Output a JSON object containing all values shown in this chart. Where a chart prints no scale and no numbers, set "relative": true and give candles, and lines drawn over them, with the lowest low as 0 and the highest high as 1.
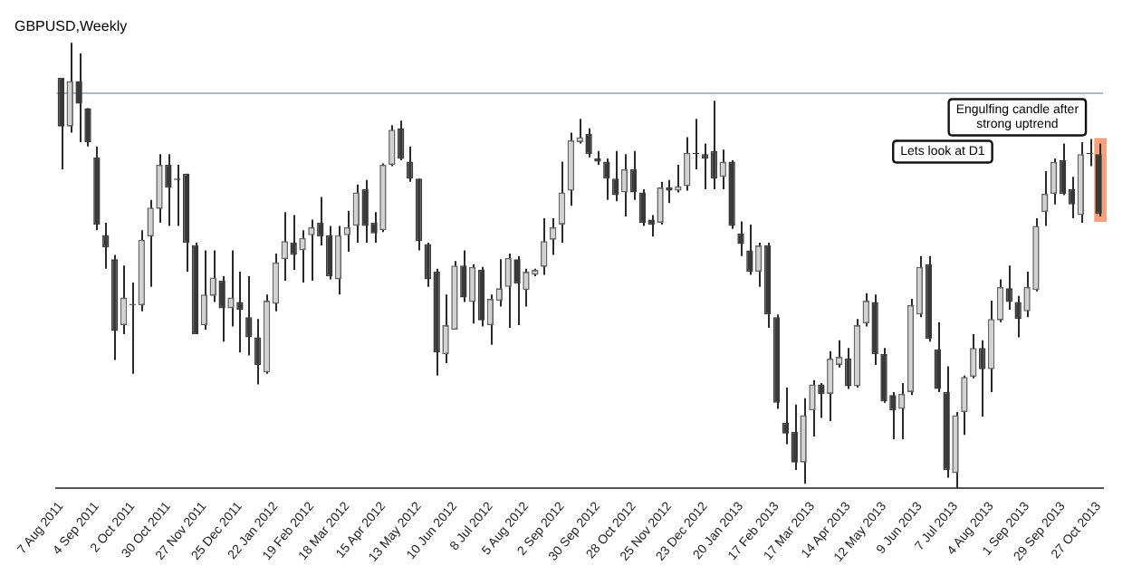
{
  "chart_data": {
    "type": "candlestick",
    "title": "GBPUSD,Weekly",
    "relative": true,
    "grid": false,
    "legend": false,
    "categories": [
      "7 Aug 2011",
      null,
      null,
      null,
      "4 Sep 2011",
      null,
      null,
      null,
      "2 Oct 2011",
      null,
      null,
      null,
      "30 Oct 2011",
      null,
      null,
      null,
      "27 Nov 2011",
      null,
      null,
      null,
      "25 Dec 2011",
      null,
      null,
      null,
      "22 Jan 2012",
      null,
      null,
      null,
      "19 Feb 2012",
      null,
      null,
      null,
      "18 Mar 2012",
      null,
      null,
      null,
      "15 Apr 2012",
      null,
      null,
      null,
      "13 May 2012",
      null,
      null,
      null,
      "10 Jun 2012",
      null,
      null,
      null,
      "8 Jul 2012",
      null,
      null,
      null,
      "5 Aug 2012",
      null,
      null,
      null,
      "2 Sep 2012",
      null,
      null,
      null,
      "30 Sep 2012",
      null,
      null,
      null,
      "28 Oct 2012",
      null,
      null,
      null,
      "25 Nov 2012",
      null,
      null,
      null,
      "23 Dec 2012",
      null,
      null,
      null,
      "20 Jan 2013",
      null,
      null,
      null,
      "17 Feb 2013",
      null,
      null,
      null,
      "17 Mar 2013",
      null,
      null,
      null,
      "14 Apr 2013",
      null,
      null,
      null,
      "12 May 2013",
      null,
      null,
      null,
      "9 Jun 2013",
      null,
      null,
      null,
      "7 Jul 2013",
      null,
      null,
      null,
      "4 Aug 2013",
      null,
      null,
      null,
      "1 Sep 2013",
      null,
      null,
      null,
      "29 Sep 2013",
      null,
      null,
      null,
      "27 Oct 2013"
    ],
    "ohlc": [
      [
        0.921,
        0.921,
        0.716,
        0.812
      ],
      [
        0.812,
        1,
        0.798,
        0.914
      ],
      [
        0.914,
        0.976,
        0.777,
        0.863
      ],
      [
        0.853,
        0.853,
        0.767,
        0.777
      ],
      [
        0.743,
        0.767,
        0.579,
        0.592
      ],
      [
        0.568,
        0.596,
        0.493,
        0.541
      ],
      [
        0.514,
        0.524,
        0.288,
        0.353
      ],
      [
        0.366,
        0.5,
        0.346,
        0.428
      ],
      [
        0.411,
        0.462,
        0.257,
        0.414
      ],
      [
        0.411,
        0.579,
        0.397,
        0.558
      ],
      [
        0.565,
        0.647,
        0.452,
        0.63
      ],
      [
        0.627,
        0.75,
        0.596,
        0.726
      ],
      [
        0.726,
        0.75,
        0.589,
        0.675
      ],
      [
        0.695,
        0.726,
        0.589,
        0.692
      ],
      [
        0.706,
        0.706,
        0.486,
        0.551
      ],
      [
        0.545,
        0.551,
        0.346,
        0.346
      ],
      [
        0.366,
        0.534,
        0.356,
        0.435
      ],
      [
        0.432,
        0.534,
        0.418,
        0.473
      ],
      [
        0.466,
        0.476,
        0.329,
        0.404
      ],
      [
        0.404,
        0.534,
        0.363,
        0.428
      ],
      [
        0.418,
        0.486,
        0.305,
        0.401
      ],
      [
        0.384,
        0.476,
        0.298,
        0.339
      ],
      [
        0.339,
        0.38,
        0.233,
        0.277
      ],
      [
        0.26,
        0.435,
        0.257,
        0.421
      ],
      [
        0.414,
        0.527,
        0.397,
        0.507
      ],
      [
        0.514,
        0.62,
        0.466,
        0.555
      ],
      [
        0.551,
        0.613,
        0.49,
        0.524
      ],
      [
        0.534,
        0.579,
        0.462,
        0.562
      ],
      [
        0.568,
        0.603,
        0.466,
        0.586
      ],
      [
        0.596,
        0.654,
        0.545,
        0.565
      ],
      [
        0.568,
        0.589,
        0.469,
        0.476
      ],
      [
        0.469,
        0.589,
        0.435,
        0.568
      ],
      [
        0.568,
        0.623,
        0.531,
        0.586
      ],
      [
        0.589,
        0.682,
        0.551,
        0.664
      ],
      [
        0.671,
        0.692,
        0.551,
        0.589
      ],
      [
        0.596,
        0.62,
        0.551,
        0.572
      ],
      [
        0.579,
        0.729,
        0.575,
        0.726
      ],
      [
        0.726,
        0.815,
        0.723,
        0.805
      ],
      [
        0.808,
        0.825,
        0.736,
        0.74
      ],
      [
        0.733,
        0.767,
        0.688,
        0.695
      ],
      [
        0.695,
        0.695,
        0.534,
        0.555
      ],
      [
        0.548,
        0.551,
        0.452,
        0.469
      ],
      [
        0.486,
        0.493,
        0.253,
        0.305
      ],
      [
        0.301,
        0.435,
        0.281,
        0.366
      ],
      [
        0.356,
        0.51,
        0.356,
        0.5
      ],
      [
        0.5,
        0.534,
        0.418,
        0.428
      ],
      [
        0.418,
        0.503,
        0.37,
        0.497
      ],
      [
        0.49,
        0.497,
        0.363,
        0.377
      ],
      [
        0.366,
        0.435,
        0.322,
        0.425
      ],
      [
        0.421,
        0.514,
        0.408,
        0.449
      ],
      [
        0.452,
        0.527,
        0.36,
        0.517
      ],
      [
        0.514,
        0.521,
        0.366,
        0.459
      ],
      [
        0.445,
        0.493,
        0.408,
        0.486
      ],
      [
        0.479,
        0.493,
        0.476,
        0.49
      ],
      [
        0.497,
        0.606,
        0.479,
        0.555
      ],
      [
        0.558,
        0.606,
        0.524,
        0.586
      ],
      [
        0.592,
        0.733,
        0.551,
        0.664
      ],
      [
        0.668,
        0.798,
        0.634,
        0.781
      ],
      [
        0.777,
        0.829,
        0.774,
        0.788
      ],
      [
        0.795,
        0.808,
        0.743,
        0.75
      ],
      [
        0.74,
        0.757,
        0.726,
        0.733
      ],
      [
        0.733,
        0.74,
        0.647,
        0.695
      ],
      [
        0.695,
        0.757,
        0.644,
        0.658
      ],
      [
        0.664,
        0.75,
        0.61,
        0.716
      ],
      [
        0.716,
        0.757,
        0.647,
        0.664
      ],
      [
        0.664,
        0.671,
        0.589,
        0.596
      ],
      [
        0.603,
        0.613,
        0.565,
        0.592
      ],
      [
        0.596,
        0.688,
        0.592,
        0.675
      ],
      [
        0.675,
        0.692,
        0.64,
        0.668
      ],
      [
        0.668,
        0.726,
        0.664,
        0.678
      ],
      [
        0.678,
        0.788,
        0.668,
        0.753
      ],
      [
        0.753,
        0.829,
        0.716,
        0.75
      ],
      [
        0.75,
        0.774,
        0.671,
        0.74
      ],
      [
        0.757,
        0.87,
        0.671,
        0.695
      ],
      [
        0.699,
        0.76,
        0.671,
        0.733
      ],
      [
        0.733,
        0.736,
        0.582,
        0.589
      ],
      [
        0.572,
        0.599,
        0.521,
        0.548
      ],
      [
        0.534,
        0.592,
        0.479,
        0.486
      ],
      [
        0.486,
        0.551,
        0.452,
        0.545
      ],
      [
        0.545,
        0.551,
        0.36,
        0.39
      ],
      [
        0.384,
        0.39,
        0.178,
        0.192
      ],
      [
        0.147,
        0.226,
        0.099,
        0.123
      ],
      [
        0.127,
        0.188,
        0.041,
        0.058
      ],
      [
        0.058,
        0.202,
        0.01,
        0.164
      ],
      [
        0.175,
        0.243,
        0.116,
        0.233
      ],
      [
        0.233,
        0.236,
        0.158,
        0.212
      ],
      [
        0.212,
        0.308,
        0.151,
        0.291
      ],
      [
        0.277,
        0.332,
        0.271,
        0.295
      ],
      [
        0.291,
        0.315,
        0.223,
        0.229
      ],
      [
        0.229,
        0.38,
        0.226,
        0.366
      ],
      [
        0.37,
        0.438,
        0.363,
        0.421
      ],
      [
        0.418,
        0.435,
        0.277,
        0.301
      ],
      [
        0.301,
        0.315,
        0.192,
        0.195
      ],
      [
        0.209,
        0.216,
        0.11,
        0.175
      ],
      [
        0.178,
        0.236,
        0.11,
        0.212
      ],
      [
        0.216,
        0.425,
        0.209,
        0.411
      ],
      [
        0.39,
        0.521,
        0.384,
        0.497
      ],
      [
        0.503,
        0.521,
        0.329,
        0.336
      ],
      [
        0.312,
        0.373,
        0.216,
        0.223
      ],
      [
        0.216,
        0.274,
        0.024,
        0.041
      ],
      [
        0.034,
        0.171,
        0,
        0.164
      ],
      [
        0.171,
        0.253,
        0.12,
        0.25
      ],
      [
        0.25,
        0.346,
        0.247,
        0.315
      ],
      [
        0.315,
        0.332,
        0.161,
        0.267
      ],
      [
        0.267,
        0.421,
        0.216,
        0.38
      ],
      [
        0.377,
        0.469,
        0.373,
        0.452
      ],
      [
        0.449,
        0.5,
        0.401,
        0.418
      ],
      [
        0.418,
        0.432,
        0.339,
        0.38
      ],
      [
        0.397,
        0.486,
        0.384,
        0.452
      ],
      [
        0.445,
        0.606,
        0.442,
        0.589
      ],
      [
        0.62,
        0.712,
        0.589,
        0.661
      ],
      [
        0.661,
        0.74,
        0.637,
        0.733
      ],
      [
        0.736,
        0.774,
        0.658,
        0.661
      ],
      [
        0.671,
        0.699,
        0.606,
        0.637
      ],
      [
        0.613,
        0.777,
        0.596,
        0.75
      ],
      [
        0.753,
        0.784,
        0.723,
        0.75
      ],
      [
        0.75,
        0.774,
        0.61,
        0.616
      ]
    ],
    "ref_lines": [
      {
        "axis": "y",
        "value": 0.887,
        "color": "#a9b8c6"
      }
    ],
    "bands": [
      {
        "axis": "x",
        "from": "27 Oct 2013",
        "to": "27 Oct 2013",
        "color": "#f4a07a"
      }
    ],
    "annotations": [
      "Engulfing candle after strong uptrend",
      "Lets look at D1"
    ]
  }
}
